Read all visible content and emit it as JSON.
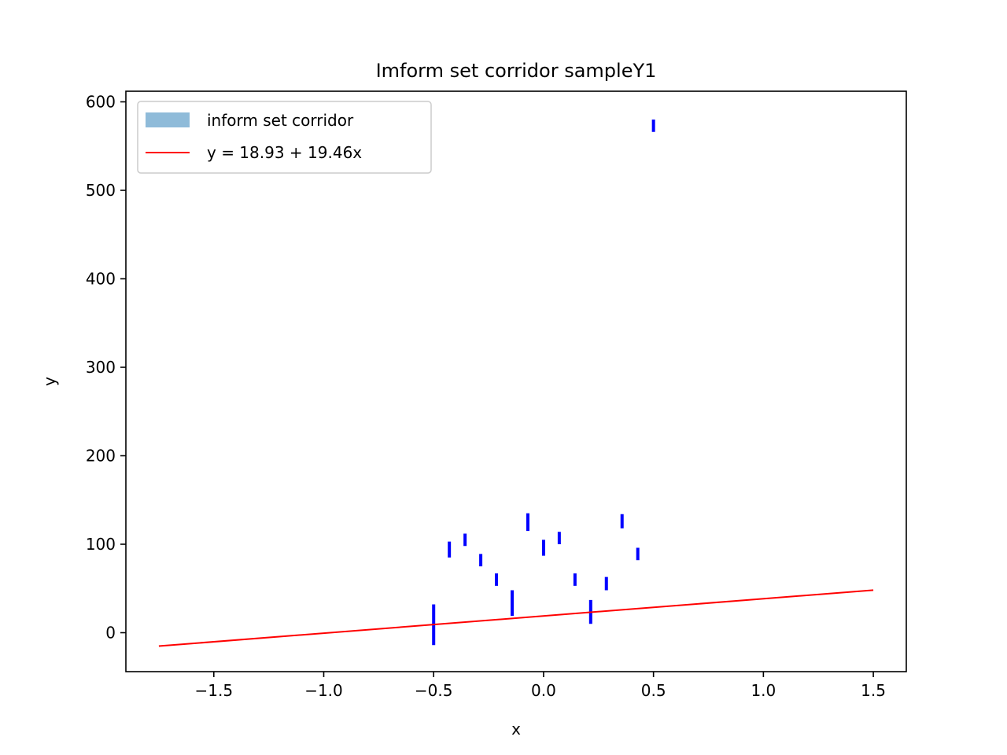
{
  "chart_data": {
    "type": "errorbar",
    "title": "Imform set corridor sampleY1",
    "xlabel": "x",
    "ylabel": "y",
    "xlim": [
      -1.9,
      1.65
    ],
    "ylim": [
      -44,
      612
    ],
    "xticks": [
      -1.5,
      -1.0,
      -0.5,
      0.0,
      0.5,
      1.0,
      1.5
    ],
    "xtick_labels": [
      "−1.5",
      "−1.0",
      "−0.5",
      "0.0",
      "0.5",
      "1.0",
      "1.5"
    ],
    "yticks": [
      0,
      100,
      200,
      300,
      400,
      500,
      600
    ],
    "ytick_labels": [
      "0",
      "100",
      "200",
      "300",
      "400",
      "500",
      "600"
    ],
    "grid": false,
    "legend": {
      "placement": "upper-left",
      "entries": [
        {
          "label": "inform set corridor",
          "kind": "patch",
          "color": "#8fbbd9"
        },
        {
          "label": "y = 18.93 + 19.46x",
          "kind": "line",
          "color": "#ff0000"
        }
      ]
    },
    "intervals": {
      "color": "#0000ff",
      "points": [
        {
          "x": -0.5,
          "low": -14,
          "high": 32
        },
        {
          "x": -0.4286,
          "low": 85,
          "high": 103
        },
        {
          "x": -0.3571,
          "low": 98,
          "high": 112
        },
        {
          "x": -0.2857,
          "low": 75,
          "high": 89
        },
        {
          "x": -0.2143,
          "low": 53,
          "high": 67
        },
        {
          "x": -0.1429,
          "low": 19,
          "high": 48
        },
        {
          "x": -0.0714,
          "low": 115,
          "high": 135
        },
        {
          "x": 0.0,
          "low": 87,
          "high": 105
        },
        {
          "x": 0.0714,
          "low": 100,
          "high": 114
        },
        {
          "x": 0.1429,
          "low": 53,
          "high": 67
        },
        {
          "x": 0.2143,
          "low": 10,
          "high": 37
        },
        {
          "x": 0.2857,
          "low": 48,
          "high": 63
        },
        {
          "x": 0.3571,
          "low": 118,
          "high": 134
        },
        {
          "x": 0.4286,
          "low": 82,
          "high": 96
        },
        {
          "x": 0.5,
          "low": 566,
          "high": 580
        }
      ]
    },
    "regression_line": {
      "intercept": 18.93,
      "slope": 19.46,
      "x_range": [
        -1.75,
        1.5
      ],
      "color": "#ff0000"
    }
  }
}
